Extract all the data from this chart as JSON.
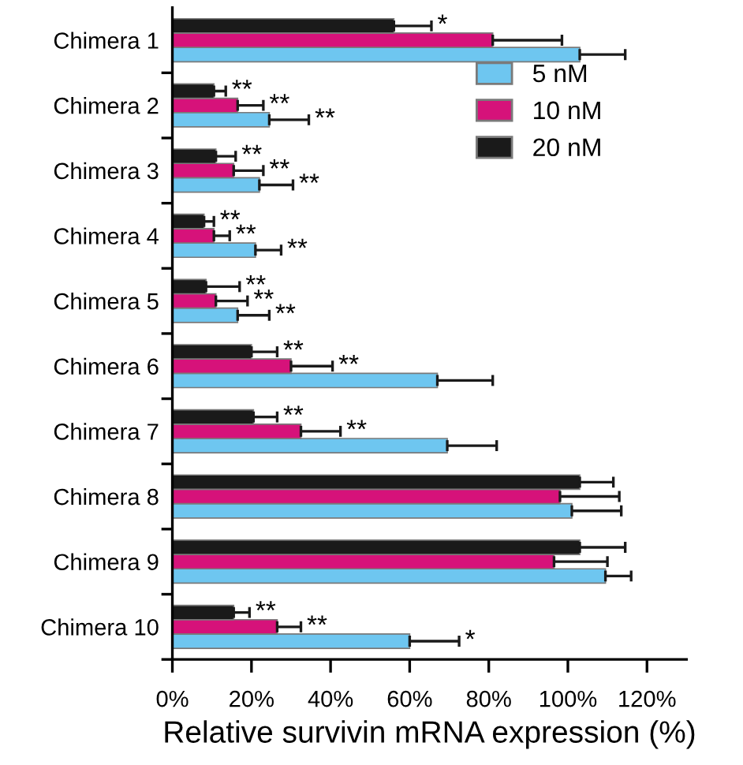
{
  "chart_data": {
    "type": "bar",
    "orientation": "horizontal",
    "xlabel": "Relative survivin mRNA expression (%)",
    "categories": [
      "Chimera 1",
      "Chimera 2",
      "Chimera 3",
      "Chimera 4",
      "Chimera 5",
      "Chimera 6",
      "Chimera 7",
      "Chimera 8",
      "Chimera 9",
      "Chimera 10"
    ],
    "series": [
      {
        "name": "5 nM",
        "color": "#6ec6f0",
        "values": [
          103,
          24.5,
          22,
          21,
          16.5,
          67,
          69.5,
          101,
          109.5,
          60
        ],
        "errors": [
          [
            103,
            114.5
          ],
          [
            24.5,
            34.5
          ],
          [
            22,
            30.5
          ],
          [
            21,
            27.5
          ],
          [
            16.5,
            24.5
          ],
          [
            67,
            81
          ],
          [
            69.5,
            82
          ],
          [
            101,
            113.5
          ],
          [
            109.5,
            116
          ],
          [
            60,
            72.5
          ]
        ],
        "value_labels": [
          null,
          "**",
          "**",
          "**",
          "**",
          null,
          null,
          null,
          null,
          "*"
        ]
      },
      {
        "name": "10 nM",
        "color": "#d6127a",
        "values": [
          81,
          16.5,
          15.5,
          10.5,
          11,
          30,
          32.5,
          98,
          96.5,
          26.5
        ],
        "errors": [
          [
            81,
            98.5
          ],
          [
            16.5,
            23
          ],
          [
            15.5,
            23
          ],
          [
            10.5,
            14.5
          ],
          [
            11,
            19
          ],
          [
            30,
            40.5
          ],
          [
            32.5,
            42.5
          ],
          [
            98,
            113
          ],
          [
            96.5,
            110
          ],
          [
            26.5,
            32.5
          ]
        ],
        "value_labels": [
          null,
          "**",
          "**",
          "**",
          "**",
          "**",
          "**",
          null,
          null,
          "**"
        ]
      },
      {
        "name": "20 nM",
        "color": "#1a1a1a",
        "values": [
          56,
          10.5,
          11,
          8,
          8.5,
          20,
          20.5,
          103,
          103,
          15.5
        ],
        "errors": [
          [
            56,
            65.5
          ],
          [
            10.5,
            13.5
          ],
          [
            11,
            16
          ],
          [
            8,
            10.5
          ],
          [
            8.5,
            17
          ],
          [
            20,
            26.5
          ],
          [
            20.5,
            26.5
          ],
          [
            103,
            111.5
          ],
          [
            103,
            114.5
          ],
          [
            15.5,
            19.5
          ]
        ],
        "value_labels": [
          "*",
          "**",
          "**",
          "**",
          "**",
          "**",
          "**",
          null,
          null,
          "**"
        ]
      }
    ],
    "xlim": [
      0,
      130
    ],
    "xticks": [
      {
        "value": 0,
        "label": "0%"
      },
      {
        "value": 20,
        "label": "20%"
      },
      {
        "value": 40,
        "label": "40%"
      },
      {
        "value": 60,
        "label": "60%"
      },
      {
        "value": 80,
        "label": "80%"
      },
      {
        "value": 100,
        "label": "100%"
      },
      {
        "value": 120,
        "label": "120%"
      }
    ],
    "legend": "top right",
    "grid": false
  }
}
